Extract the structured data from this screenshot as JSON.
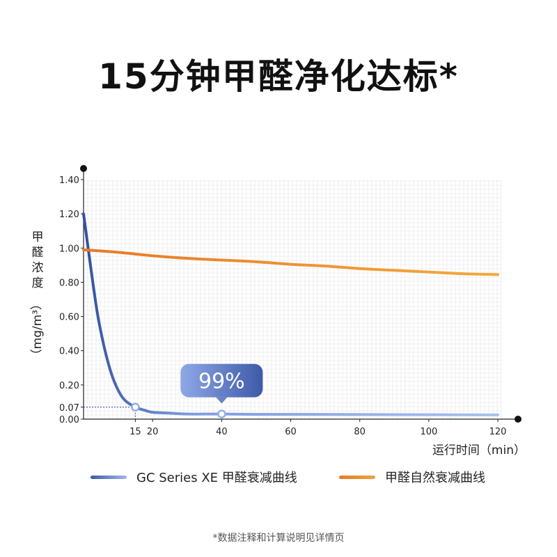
{
  "headline": "15分钟甲醛净化达标*",
  "footnote": "*数据注释和计算说明见详情页",
  "chart_data": {
    "type": "line",
    "xlabel": "运行时间（min）",
    "ylabel_chars": [
      "甲",
      "醛",
      "浓",
      "度"
    ],
    "ylabel_unit": "（mg/m³）",
    "xlim": [
      0,
      121
    ],
    "ylim": [
      0,
      1.4
    ],
    "x_ticks": [
      15,
      20,
      40,
      60,
      80,
      100,
      120
    ],
    "y_ticks": [
      0.0,
      0.07,
      0.2,
      0.4,
      0.6,
      0.8,
      1.0,
      1.2,
      1.4
    ],
    "y_tick_labels": [
      "0.00",
      "0.07",
      "0.20",
      "0.40",
      "0.60",
      "0.80",
      "1.00",
      "1.20",
      "1.40"
    ],
    "grid": true,
    "legend_position": "bottom",
    "series": [
      {
        "name": "GC Series XE 甲醛衰减曲线",
        "color": "#5a74c4",
        "x": [
          0,
          2,
          4,
          6,
          8,
          10,
          12,
          15,
          18,
          20,
          25,
          30,
          40,
          50,
          60,
          80,
          100,
          120
        ],
        "y": [
          1.2,
          0.9,
          0.62,
          0.42,
          0.27,
          0.17,
          0.11,
          0.07,
          0.05,
          0.04,
          0.035,
          0.03,
          0.03,
          0.028,
          0.028,
          0.027,
          0.026,
          0.025
        ]
      },
      {
        "name": "甲醛自然衰减曲线",
        "color": "#ec8a2b",
        "x": [
          0,
          10,
          20,
          30,
          40,
          50,
          60,
          70,
          80,
          90,
          100,
          110,
          120
        ],
        "y": [
          0.99,
          0.975,
          0.955,
          0.94,
          0.93,
          0.92,
          0.905,
          0.895,
          0.88,
          0.87,
          0.86,
          0.85,
          0.845
        ]
      }
    ],
    "markers": [
      {
        "x": 15,
        "y": 0.07
      },
      {
        "x": 40,
        "y": 0.03
      }
    ],
    "reference_lines": {
      "x": 15,
      "y": 0.07
    },
    "annotation": {
      "text": "99%",
      "x": 40,
      "y": 0.03
    }
  }
}
